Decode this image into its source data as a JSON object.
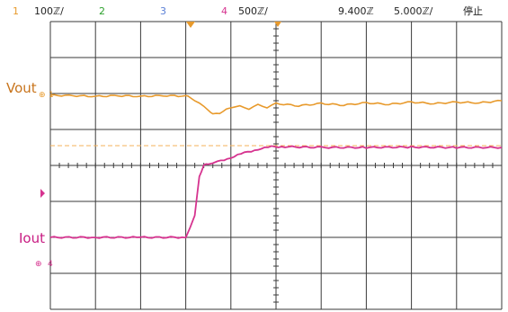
{
  "header": {
    "ch1_num": "1",
    "ch1_scale": "100ℤ/",
    "ch2_num": "2",
    "ch3_num": "3",
    "ch4_num": "4",
    "ch4_scale": "500ℤ/",
    "timebase": "9.400ℤ",
    "time_div": "5.000ℤ/",
    "run_state": "停止"
  },
  "labels": {
    "vout": "Vout",
    "iout": "Iout",
    "ch1_marker": "1",
    "ch4_marker": "4"
  },
  "colors": {
    "ch1": "#e89a2c",
    "ch2": "#2ca02c",
    "ch3": "#5a7fd6",
    "ch4": "#d6338f",
    "grid": "#3a3a3a",
    "vout_text": "#c8741c",
    "iout_text": "#c81c82"
  },
  "chart_data": {
    "type": "line",
    "grid_divisions": {
      "x": 10,
      "y": 8
    },
    "series": [
      {
        "name": "Vout",
        "x": [
          0,
          0.5,
          1,
          1.5,
          2,
          2.5,
          3,
          3.1,
          3.3,
          3.5,
          3.6,
          3.75,
          3.9,
          4.0,
          4.2,
          4.4,
          4.6,
          4.8,
          5.0,
          5.5,
          6,
          6.5,
          7,
          7.5,
          8,
          8.5,
          9,
          9.5,
          10
        ],
        "y": [
          1.95,
          1.94,
          1.92,
          1.94,
          1.92,
          1.94,
          1.93,
          1.9,
          1.72,
          1.55,
          1.42,
          1.46,
          1.55,
          1.62,
          1.64,
          1.58,
          1.68,
          1.62,
          1.72,
          1.66,
          1.72,
          1.68,
          1.74,
          1.7,
          1.76,
          1.72,
          1.76,
          1.74,
          1.8
        ]
      },
      {
        "name": "Iout",
        "x": [
          0,
          1,
          2,
          3,
          3.2,
          3.3,
          3.4,
          3.5,
          3.7,
          4.0,
          4.3,
          4.6,
          4.9,
          5.2,
          6,
          7,
          8,
          9,
          10
        ],
        "y": [
          -2.0,
          -2.0,
          -2.0,
          -2.0,
          -1.4,
          -0.3,
          0.0,
          0.05,
          0.1,
          0.22,
          0.35,
          0.45,
          0.52,
          0.52,
          0.5,
          0.5,
          0.51,
          0.5,
          0.5
        ]
      }
    ],
    "reference_line_y": 0.55
  }
}
